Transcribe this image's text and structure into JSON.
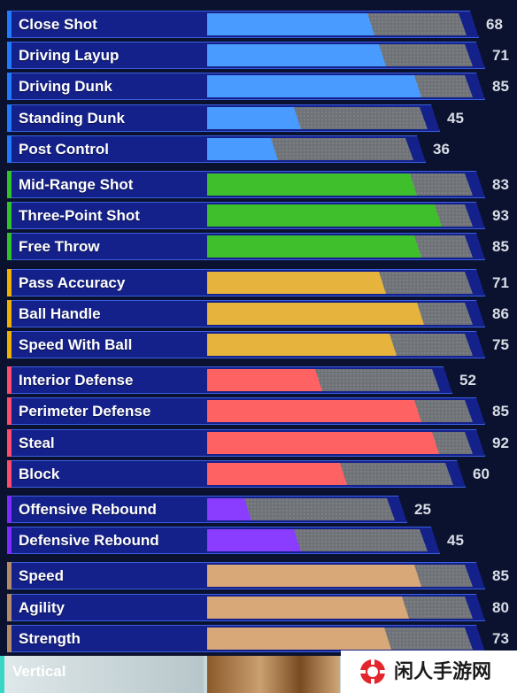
{
  "colors": {
    "shooting": "#4a9bff",
    "shooting_accent": "#1e7bff",
    "midrange": "#3fbf2c",
    "midrange_accent": "#2fc22a",
    "playmaking": "#e6b43c",
    "playmaking_accent": "#f0b000",
    "defense": "#ff6262",
    "defense_accent": "#ff4a6a",
    "rebounding": "#8a3cff",
    "rebounding_accent": "#7a2bff",
    "physical": "#d8a878",
    "physical_accent": "#b58b67"
  },
  "attributes": [
    {
      "label": "Close Shot",
      "value": "68",
      "level": 68,
      "color_key": "shooting"
    },
    {
      "label": "Driving Layup",
      "value": "71",
      "level": 71,
      "color_key": "shooting"
    },
    {
      "label": "Driving Dunk",
      "value": "85",
      "level": 85,
      "color_key": "shooting"
    },
    {
      "label": "Standing Dunk",
      "value": "45",
      "level": 45,
      "color_key": "shooting"
    },
    {
      "label": "Post Control",
      "value": "36",
      "level": 36,
      "color_key": "shooting"
    },
    {
      "label": "Mid-Range Shot",
      "value": "83",
      "level": 83,
      "color_key": "midrange"
    },
    {
      "label": "Three-Point Shot",
      "value": "93",
      "level": 93,
      "color_key": "midrange"
    },
    {
      "label": "Free Throw",
      "value": "85",
      "level": 85,
      "color_key": "midrange"
    },
    {
      "label": "Pass Accuracy",
      "value": "71",
      "level": 71,
      "color_key": "playmaking"
    },
    {
      "label": "Ball Handle",
      "value": "86",
      "level": 86,
      "color_key": "playmaking"
    },
    {
      "label": "Speed With Ball",
      "value": "75",
      "level": 75,
      "color_key": "playmaking"
    },
    {
      "label": "Interior Defense",
      "value": "52",
      "level": 52,
      "color_key": "defense"
    },
    {
      "label": "Perimeter Defense",
      "value": "85",
      "level": 85,
      "color_key": "defense"
    },
    {
      "label": "Steal",
      "value": "92",
      "level": 92,
      "color_key": "defense"
    },
    {
      "label": "Block",
      "value": "60",
      "level": 60,
      "color_key": "defense"
    },
    {
      "label": "Offensive Rebound",
      "value": "25",
      "level": 25,
      "color_key": "rebounding"
    },
    {
      "label": "Defensive Rebound",
      "value": "45",
      "level": 45,
      "color_key": "rebounding"
    },
    {
      "label": "Speed",
      "value": "85",
      "level": 85,
      "color_key": "physical"
    },
    {
      "label": "Agility",
      "value": "80",
      "level": 80,
      "color_key": "physical"
    },
    {
      "label": "Strength",
      "value": "73",
      "level": 73,
      "color_key": "physical"
    }
  ],
  "vertical": {
    "label": "Vertical"
  },
  "watermark": {
    "text": "闲人手游网"
  }
}
